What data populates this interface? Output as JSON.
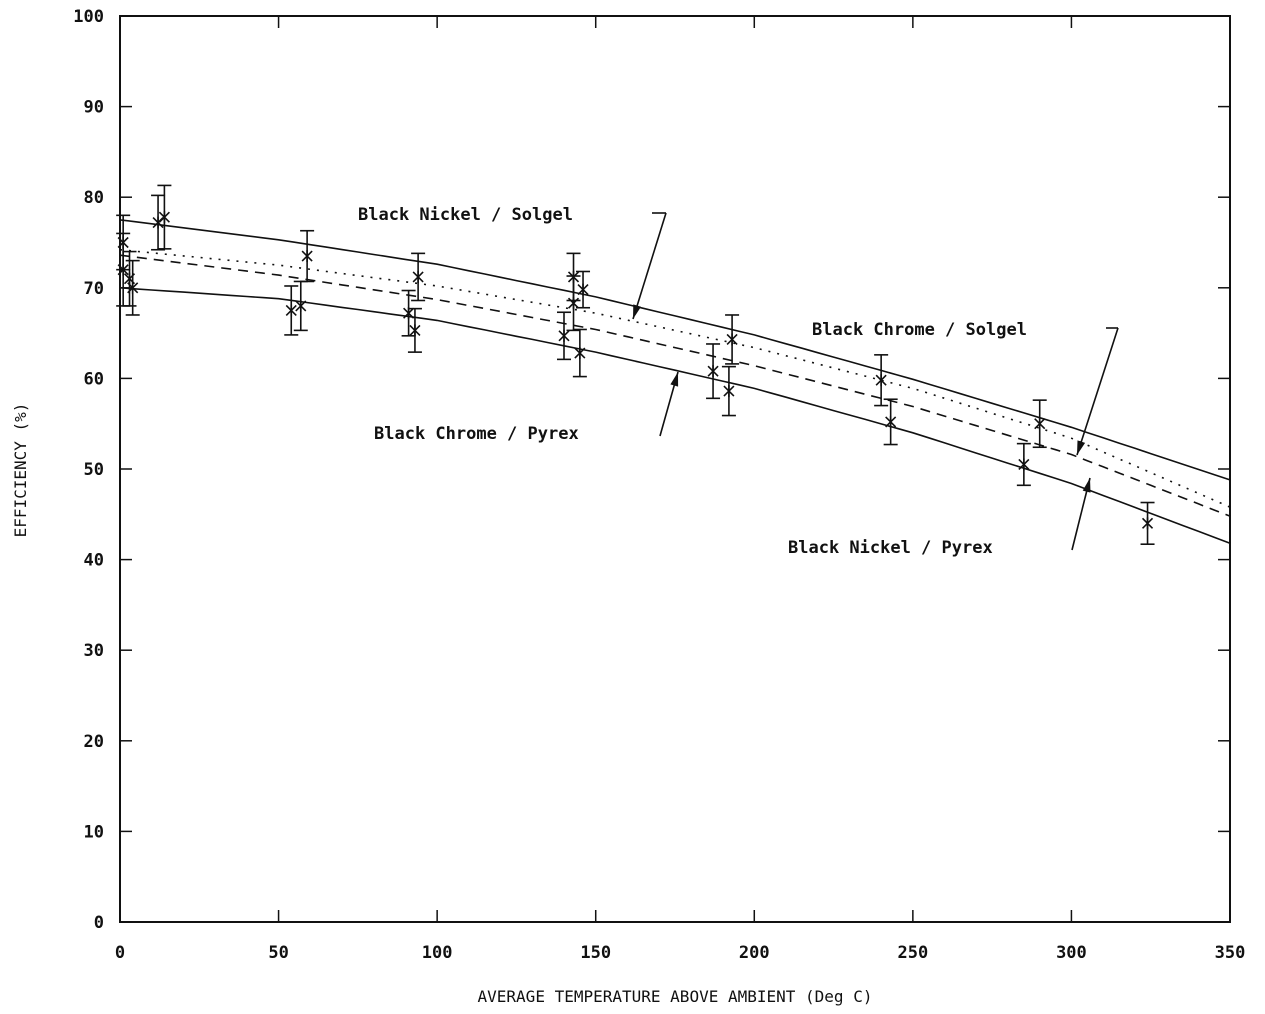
{
  "chart_data": {
    "type": "line",
    "title": "",
    "xlabel": "AVERAGE TEMPERATURE ABOVE AMBIENT   (Deg C)",
    "ylabel": "EFFICIENCY    (%)",
    "xlim": [
      0,
      350
    ],
    "ylim": [
      0,
      100
    ],
    "x_ticks": [
      0,
      50,
      100,
      150,
      200,
      250,
      300,
      350
    ],
    "x_tick_labels": [
      "0",
      "50",
      "100",
      "150",
      "200",
      "250",
      "300",
      "350"
    ],
    "y_ticks": [
      0,
      10,
      20,
      30,
      40,
      50,
      60,
      70,
      80,
      90,
      100
    ],
    "y_tick_labels": [
      "0",
      "10",
      "20",
      "30",
      "40",
      "50",
      "60",
      "70",
      "80",
      "90",
      "100"
    ],
    "grid": false,
    "legend": "none",
    "series": [
      {
        "name": "Black Nickel / Solgel",
        "line_style": "solid",
        "curve": {
          "x": [
            0,
            50,
            100,
            150,
            200,
            250,
            300,
            350
          ],
          "y": [
            77.5,
            75.3,
            72.6,
            69.0,
            64.8,
            59.9,
            54.6,
            48.8
          ]
        },
        "points": [
          {
            "x": 1,
            "y": 75,
            "err": 3
          },
          {
            "x": 12,
            "y": 77.2,
            "err": 3
          },
          {
            "x": 14,
            "y": 77.8,
            "err": 3.5
          },
          {
            "x": 59,
            "y": 73.5,
            "err": 2.8
          },
          {
            "x": 94,
            "y": 71.2,
            "err": 2.6
          },
          {
            "x": 143,
            "y": 71.2,
            "err": 2.6
          },
          {
            "x": 146,
            "y": 69.8,
            "err": 2.0
          },
          {
            "x": 193,
            "y": 64.3,
            "err": 2.7
          },
          {
            "x": 240,
            "y": 59.8,
            "err": 2.8
          },
          {
            "x": 290,
            "y": 55,
            "err": 2.6
          }
        ]
      },
      {
        "name": "Black Chrome / Solgel",
        "line_style": "dotted",
        "curve": {
          "x": [
            0,
            50,
            100,
            150,
            200,
            250,
            300,
            350
          ],
          "y": [
            74.2,
            72.5,
            70.2,
            67.2,
            63.4,
            58.9,
            53.4,
            45.8
          ]
        },
        "points": []
      },
      {
        "name": "Black Chrome / Pyrex",
        "line_style": "dashed",
        "curve": {
          "x": [
            0,
            50,
            100,
            150,
            200,
            250,
            300,
            350
          ],
          "y": [
            73.6,
            71.4,
            68.7,
            65.4,
            61.4,
            56.9,
            51.6,
            44.8
          ]
        },
        "points": []
      },
      {
        "name": "Black Nickel / Pyrex",
        "line_style": "solid",
        "curve": {
          "x": [
            0,
            50,
            100,
            150,
            200,
            250,
            300,
            350
          ],
          "y": [
            70.0,
            68.8,
            66.4,
            62.9,
            58.9,
            54.0,
            48.4,
            41.8
          ]
        },
        "points": [
          {
            "x": 1,
            "y": 72,
            "err": 4
          },
          {
            "x": 3,
            "y": 71,
            "err": 3
          },
          {
            "x": 4,
            "y": 70,
            "err": 3
          },
          {
            "x": 54,
            "y": 67.5,
            "err": 2.7
          },
          {
            "x": 57,
            "y": 68,
            "err": 2.7
          },
          {
            "x": 91,
            "y": 67.2,
            "err": 2.5
          },
          {
            "x": 93,
            "y": 65.3,
            "err": 2.4
          },
          {
            "x": 140,
            "y": 64.7,
            "err": 2.6
          },
          {
            "x": 143,
            "y": 68.3,
            "err": 3.0
          },
          {
            "x": 145,
            "y": 62.8,
            "err": 2.6
          },
          {
            "x": 187,
            "y": 60.8,
            "err": 3.0
          },
          {
            "x": 192,
            "y": 58.6,
            "err": 2.7
          },
          {
            "x": 243,
            "y": 55.2,
            "err": 2.5
          },
          {
            "x": 285,
            "y": 50.5,
            "err": 2.3
          },
          {
            "x": 324,
            "y": 44,
            "err": 2.3
          }
        ]
      }
    ],
    "annotations": [
      {
        "text": "Black Nickel / Solgel",
        "series": "Black Nickel / Solgel"
      },
      {
        "text": "Black Chrome / Solgel",
        "series": "Black Chrome / Solgel"
      },
      {
        "text": "Black Chrome / Pyrex",
        "series": "Black Chrome / Pyrex"
      },
      {
        "text": "Black Nickel / Pyrex",
        "series": "Black Nickel / Pyrex"
      }
    ]
  }
}
